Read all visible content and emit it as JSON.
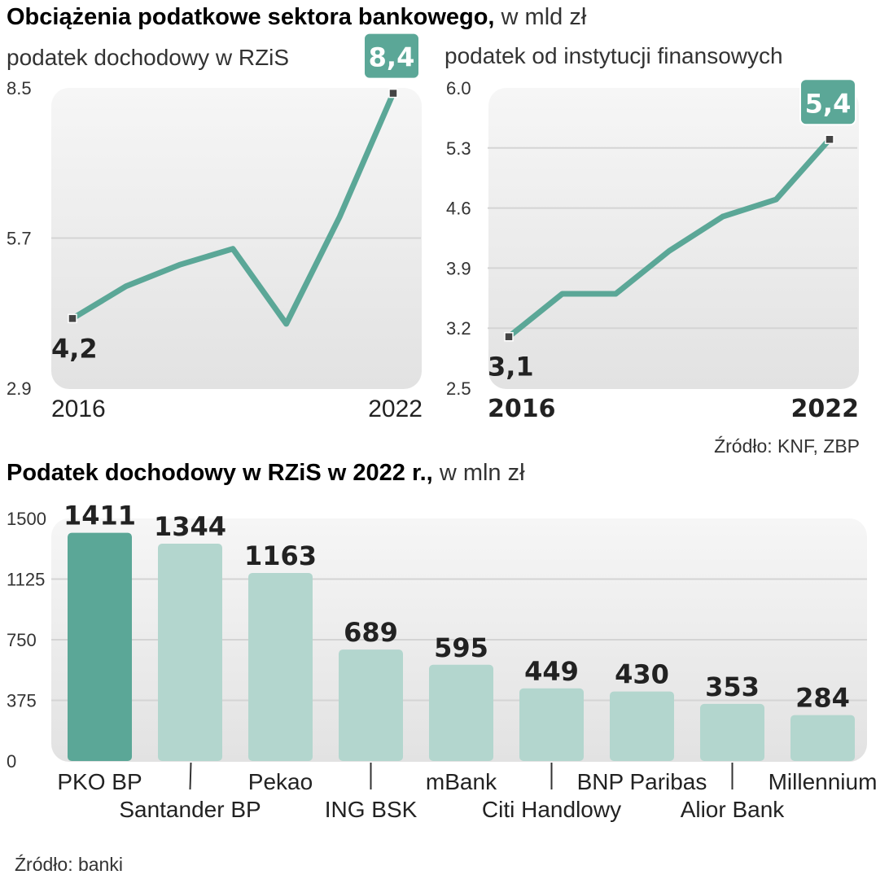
{
  "title_bold": "Obciążenia podatkowe sektora bankowego,",
  "title_unit": "w mld zł",
  "source1": "Źródło: KNF, ZBP",
  "source2": "Źródło: banki",
  "colors": {
    "line": "#5ba797",
    "dark_bar": "#5ba797",
    "light_bar": "#b3d6ce",
    "label_box": "#5ba797"
  },
  "chart_data": [
    {
      "type": "line",
      "title": "podatek dochodowy w RZiS",
      "x": [
        2016,
        2017,
        2018,
        2019,
        2020,
        2021,
        2022
      ],
      "values": [
        4.2,
        4.8,
        5.2,
        5.5,
        4.1,
        6.1,
        8.4
      ],
      "ylim": [
        2.9,
        8.5
      ],
      "yticks": [
        "2.9",
        "5.7",
        "8.5"
      ],
      "xtick_labels": [
        "2016",
        "2022"
      ],
      "start_label": "4,2",
      "end_label": "8,4"
    },
    {
      "type": "line",
      "title": "podatek od instytucji finansowych",
      "x": [
        2016,
        2017,
        2018,
        2019,
        2020,
        2021,
        2022
      ],
      "values": [
        3.1,
        3.6,
        3.6,
        4.1,
        4.5,
        4.7,
        5.4
      ],
      "ylim": [
        2.5,
        6.0
      ],
      "yticks": [
        "2.5",
        "3.2",
        "3.9",
        "4.6",
        "5.3",
        "6.0"
      ],
      "xtick_labels": [
        "2016",
        "2022"
      ],
      "start_label": "3,1",
      "end_label": "5,4"
    },
    {
      "type": "bar",
      "title": "Podatek dochodowy w RZiS w 2022 r.,",
      "unit": "w mln zł",
      "categories": [
        "PKO BP",
        "Santander BP",
        "Pekao",
        "ING BSK",
        "mBank",
        "Citi Handlowy",
        "BNP Paribas",
        "Alior Bank",
        "Millennium"
      ],
      "values": [
        1411,
        1344,
        1163,
        689,
        595,
        449,
        430,
        353,
        284
      ],
      "ylim": [
        0,
        1500
      ],
      "yticks": [
        "0",
        "375",
        "750",
        "1125",
        "1500"
      ]
    }
  ]
}
